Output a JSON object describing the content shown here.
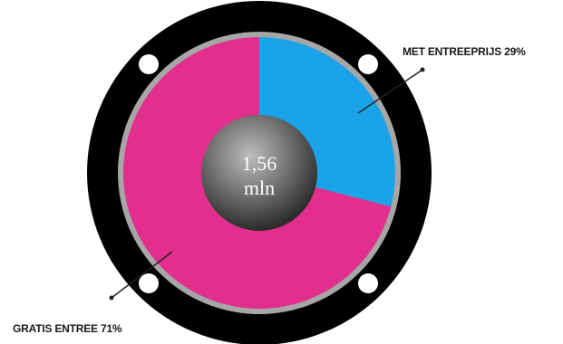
{
  "chart_data": {
    "type": "pie",
    "center_text": [
      "1,56",
      "mln"
    ],
    "slices": [
      {
        "label": "MET ENTREEPRIJS 29%",
        "value": 29,
        "color": "#1aa3e8"
      },
      {
        "label": "GRATIS ENTREE 71%",
        "value": 71,
        "color": "#e22f8e"
      }
    ]
  },
  "style": {
    "speaker_color": "#000000",
    "rim_color": "#a6a6a6",
    "hole_color": "#ffffff",
    "center_cap_color": "#808080"
  }
}
